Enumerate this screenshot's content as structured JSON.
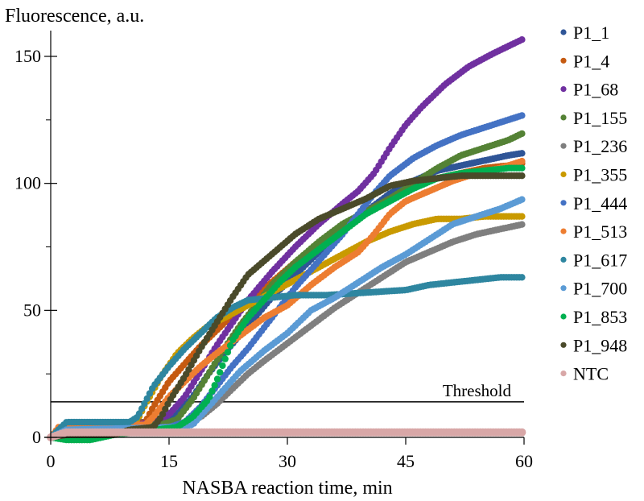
{
  "chart_data": {
    "type": "scatter",
    "title": "",
    "ylabel": "Fluorescence, a.u.",
    "xlabel": "NASBA reaction time, min",
    "xlim": [
      0,
      60
    ],
    "ylim": [
      0,
      160
    ],
    "x_ticks": [
      0,
      15,
      30,
      45,
      60
    ],
    "y_ticks": [
      0,
      50,
      100,
      150
    ],
    "y_minor_ticks": [
      25,
      75,
      125
    ],
    "grid": false,
    "legend_position": "right",
    "threshold": {
      "label": "Threshold",
      "value": 14
    },
    "sampling_interval_min": 0.33,
    "series": [
      {
        "name": "P1_1",
        "color": "#2F5597",
        "points": [
          [
            0,
            0
          ],
          [
            1,
            3
          ],
          [
            2,
            5
          ],
          [
            12,
            6
          ],
          [
            14,
            6
          ],
          [
            16,
            9
          ],
          [
            18,
            16
          ],
          [
            20,
            25
          ],
          [
            22,
            33
          ],
          [
            25,
            44
          ],
          [
            28,
            55
          ],
          [
            31,
            64
          ],
          [
            34,
            73
          ],
          [
            37,
            82
          ],
          [
            40,
            89
          ],
          [
            43,
            96
          ],
          [
            46,
            101
          ],
          [
            49,
            105
          ],
          [
            52,
            107
          ],
          [
            55,
            109
          ],
          [
            58,
            111
          ],
          [
            60,
            112
          ]
        ]
      },
      {
        "name": "P1_4",
        "color": "#C55A11",
        "points": [
          [
            0,
            0
          ],
          [
            1,
            3
          ],
          [
            2,
            4
          ],
          [
            10,
            5
          ],
          [
            12,
            6
          ],
          [
            13,
            12
          ],
          [
            15,
            22
          ],
          [
            17,
            29
          ],
          [
            19,
            36
          ],
          [
            22,
            45
          ],
          [
            25,
            53
          ],
          [
            28,
            61
          ],
          [
            31,
            69
          ],
          [
            34,
            76
          ],
          [
            37,
            83
          ],
          [
            40,
            89
          ],
          [
            43,
            94
          ],
          [
            46,
            99
          ],
          [
            49,
            102
          ],
          [
            52,
            104
          ],
          [
            55,
            106
          ],
          [
            58,
            107
          ],
          [
            60,
            108
          ]
        ]
      },
      {
        "name": "P1_68",
        "color": "#7030A0",
        "points": [
          [
            0,
            0
          ],
          [
            2,
            4
          ],
          [
            11,
            5
          ],
          [
            13,
            6
          ],
          [
            15,
            9
          ],
          [
            17,
            16
          ],
          [
            19,
            26
          ],
          [
            21,
            36
          ],
          [
            23,
            45
          ],
          [
            25,
            54
          ],
          [
            28,
            65
          ],
          [
            31,
            75
          ],
          [
            34,
            84
          ],
          [
            37,
            92
          ],
          [
            39,
            97
          ],
          [
            41,
            104
          ],
          [
            43,
            114
          ],
          [
            45,
            123
          ],
          [
            47,
            130
          ],
          [
            50,
            139
          ],
          [
            53,
            146
          ],
          [
            56,
            151
          ],
          [
            58,
            154
          ],
          [
            60,
            157
          ]
        ]
      },
      {
        "name": "P1_155",
        "color": "#548235",
        "points": [
          [
            0,
            0
          ],
          [
            2,
            4
          ],
          [
            14,
            5
          ],
          [
            16,
            7
          ],
          [
            18,
            15
          ],
          [
            20,
            25
          ],
          [
            22,
            35
          ],
          [
            24,
            44
          ],
          [
            26,
            52
          ],
          [
            28,
            60
          ],
          [
            31,
            69
          ],
          [
            34,
            77
          ],
          [
            37,
            84
          ],
          [
            40,
            89
          ],
          [
            43,
            94
          ],
          [
            46,
            100
          ],
          [
            49,
            106
          ],
          [
            52,
            111
          ],
          [
            55,
            114
          ],
          [
            58,
            117
          ],
          [
            60,
            120
          ]
        ]
      },
      {
        "name": "P1_236",
        "color": "#7F7F7F",
        "points": [
          [
            0,
            0
          ],
          [
            2,
            3
          ],
          [
            15,
            4
          ],
          [
            17,
            5
          ],
          [
            19,
            8
          ],
          [
            21,
            13
          ],
          [
            23,
            19
          ],
          [
            25,
            25
          ],
          [
            27,
            30
          ],
          [
            30,
            37
          ],
          [
            33,
            44
          ],
          [
            36,
            51
          ],
          [
            39,
            57
          ],
          [
            42,
            63
          ],
          [
            45,
            69
          ],
          [
            48,
            73
          ],
          [
            51,
            77
          ],
          [
            54,
            80
          ],
          [
            57,
            82
          ],
          [
            60,
            84
          ]
        ]
      },
      {
        "name": "P1_355",
        "color": "#C99A00",
        "points": [
          [
            0,
            0
          ],
          [
            2,
            4
          ],
          [
            10,
            5
          ],
          [
            11,
            7
          ],
          [
            12,
            13
          ],
          [
            14,
            24
          ],
          [
            16,
            33
          ],
          [
            18,
            39
          ],
          [
            20,
            44
          ],
          [
            22,
            47
          ],
          [
            25,
            52
          ],
          [
            28,
            57
          ],
          [
            31,
            62
          ],
          [
            34,
            67
          ],
          [
            37,
            72
          ],
          [
            40,
            77
          ],
          [
            43,
            81
          ],
          [
            46,
            84
          ],
          [
            49,
            86
          ],
          [
            52,
            86
          ],
          [
            55,
            87
          ],
          [
            58,
            87
          ],
          [
            60,
            87
          ]
        ]
      },
      {
        "name": "P1_444",
        "color": "#4472C4",
        "points": [
          [
            0,
            0
          ],
          [
            2,
            4
          ],
          [
            15,
            4
          ],
          [
            17,
            6
          ],
          [
            19,
            12
          ],
          [
            21,
            20
          ],
          [
            23,
            28
          ],
          [
            25,
            35
          ],
          [
            27,
            43
          ],
          [
            29,
            51
          ],
          [
            31,
            59
          ],
          [
            33,
            66
          ],
          [
            35,
            73
          ],
          [
            37,
            80
          ],
          [
            39,
            88
          ],
          [
            41,
            96
          ],
          [
            43,
            103
          ],
          [
            46,
            110
          ],
          [
            49,
            115
          ],
          [
            52,
            119
          ],
          [
            55,
            122
          ],
          [
            58,
            125
          ],
          [
            60,
            127
          ]
        ]
      },
      {
        "name": "P1_513",
        "color": "#ED7D31",
        "points": [
          [
            0,
            0
          ],
          [
            1,
            4
          ],
          [
            12,
            5
          ],
          [
            13,
            8
          ],
          [
            15,
            16
          ],
          [
            17,
            22
          ],
          [
            19,
            28
          ],
          [
            21,
            33
          ],
          [
            24,
            40
          ],
          [
            27,
            47
          ],
          [
            30,
            52
          ],
          [
            33,
            60
          ],
          [
            36,
            67
          ],
          [
            39,
            73
          ],
          [
            41,
            80
          ],
          [
            43,
            88
          ],
          [
            45,
            93
          ],
          [
            48,
            97
          ],
          [
            51,
            101
          ],
          [
            54,
            104
          ],
          [
            57,
            106
          ],
          [
            60,
            109
          ]
        ]
      },
      {
        "name": "P1_617",
        "color": "#2E86A0",
        "points": [
          [
            0,
            0
          ],
          [
            1,
            3
          ],
          [
            2,
            6
          ],
          [
            10,
            6
          ],
          [
            11,
            8
          ],
          [
            12,
            14
          ],
          [
            13,
            20
          ],
          [
            15,
            28
          ],
          [
            17,
            35
          ],
          [
            19,
            41
          ],
          [
            21,
            47
          ],
          [
            23,
            51
          ],
          [
            25,
            54
          ],
          [
            28,
            55
          ],
          [
            31,
            56
          ],
          [
            35,
            56
          ],
          [
            40,
            57
          ],
          [
            45,
            58
          ],
          [
            48,
            60
          ],
          [
            51,
            61
          ],
          [
            54,
            62
          ],
          [
            57,
            63
          ],
          [
            60,
            63
          ]
        ]
      },
      {
        "name": "P1_700",
        "color": "#5B9BD5",
        "points": [
          [
            0,
            0
          ],
          [
            2,
            3
          ],
          [
            16,
            4
          ],
          [
            18,
            5
          ],
          [
            20,
            12
          ],
          [
            22,
            19
          ],
          [
            24,
            26
          ],
          [
            27,
            34
          ],
          [
            30,
            41
          ],
          [
            33,
            50
          ],
          [
            36,
            55
          ],
          [
            39,
            61
          ],
          [
            42,
            67
          ],
          [
            45,
            72
          ],
          [
            48,
            78
          ],
          [
            51,
            84
          ],
          [
            54,
            87
          ],
          [
            57,
            90
          ],
          [
            60,
            94
          ]
        ]
      },
      {
        "name": "P1_853",
        "color": "#00B050",
        "points": [
          [
            0,
            0
          ],
          [
            2,
            -1
          ],
          [
            5,
            -1
          ],
          [
            8,
            1
          ],
          [
            16,
            4
          ],
          [
            18,
            8
          ],
          [
            20,
            15
          ],
          [
            21,
            22
          ],
          [
            22,
            30
          ],
          [
            23,
            38
          ],
          [
            25,
            47
          ],
          [
            27,
            54
          ],
          [
            29,
            61
          ],
          [
            31,
            67
          ],
          [
            34,
            74
          ],
          [
            37,
            81
          ],
          [
            40,
            88
          ],
          [
            43,
            93
          ],
          [
            46,
            98
          ],
          [
            49,
            102
          ],
          [
            52,
            104
          ],
          [
            55,
            105
          ],
          [
            58,
            106
          ],
          [
            60,
            106
          ]
        ]
      },
      {
        "name": "P1_948",
        "color": "#4A4A2A",
        "points": [
          [
            0,
            0
          ],
          [
            2,
            1
          ],
          [
            8,
            1
          ],
          [
            10,
            3
          ],
          [
            13,
            4
          ],
          [
            14,
            8
          ],
          [
            15,
            14
          ],
          [
            17,
            24
          ],
          [
            19,
            35
          ],
          [
            21,
            45
          ],
          [
            23,
            55
          ],
          [
            25,
            64
          ],
          [
            28,
            72
          ],
          [
            31,
            80
          ],
          [
            34,
            86
          ],
          [
            37,
            90
          ],
          [
            40,
            94
          ],
          [
            43,
            99
          ],
          [
            46,
            101
          ],
          [
            49,
            102
          ],
          [
            52,
            103
          ],
          [
            55,
            103
          ],
          [
            58,
            103
          ],
          [
            60,
            103
          ]
        ]
      },
      {
        "name": "NTC",
        "color": "#D8A7A7",
        "points": [
          [
            0,
            0
          ],
          [
            1,
            1
          ],
          [
            2,
            2
          ],
          [
            5,
            2
          ],
          [
            10,
            2
          ],
          [
            20,
            2
          ],
          [
            30,
            2
          ],
          [
            40,
            2
          ],
          [
            50,
            2
          ],
          [
            60,
            2
          ]
        ]
      }
    ]
  }
}
